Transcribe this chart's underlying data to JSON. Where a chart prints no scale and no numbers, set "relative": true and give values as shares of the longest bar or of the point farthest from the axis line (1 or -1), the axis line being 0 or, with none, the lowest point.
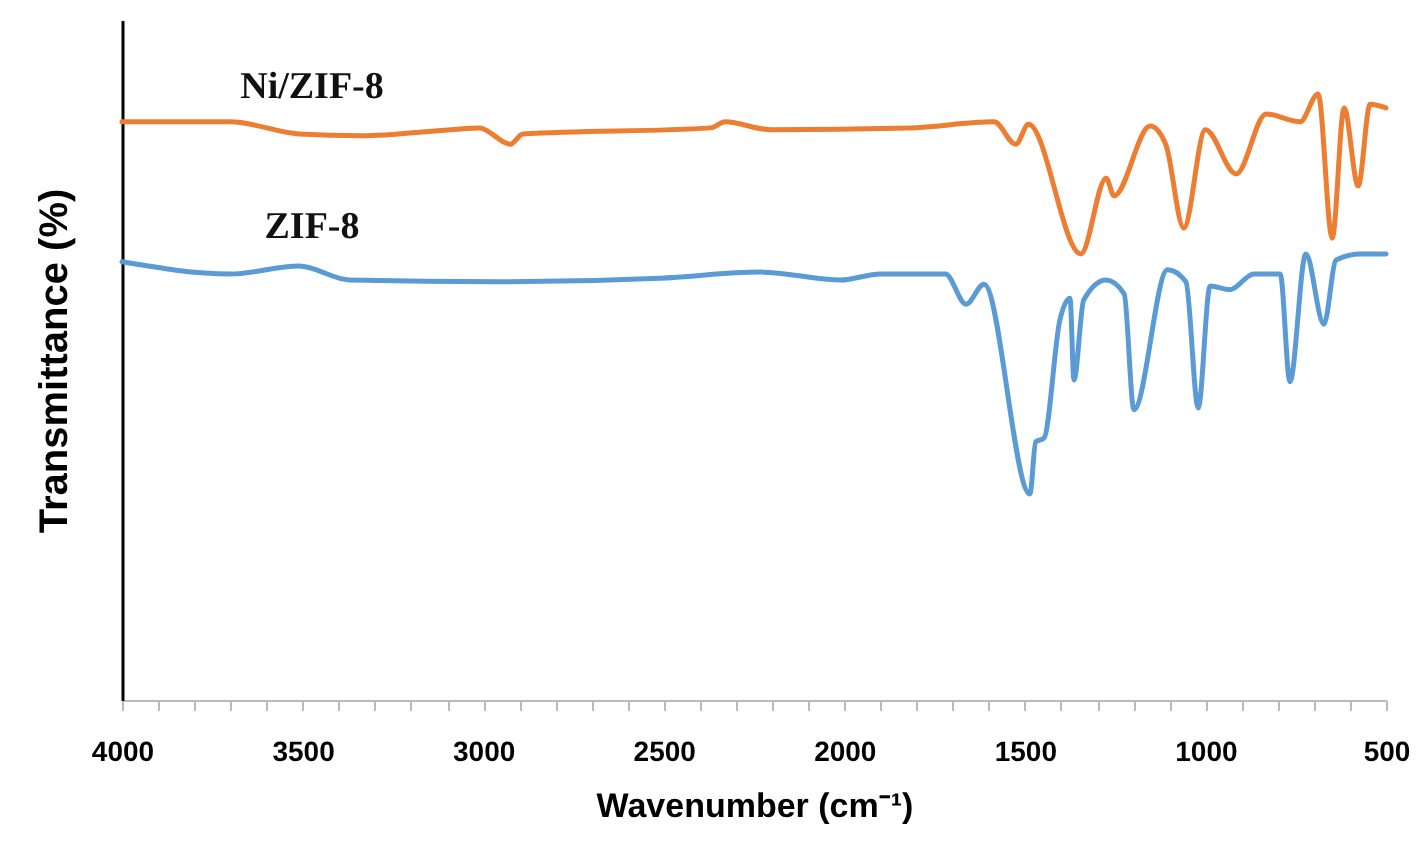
{
  "chart_data": {
    "type": "line",
    "relative": true,
    "xlabel": "Wavenumber (cm⁻¹)",
    "ylabel": "Transmittance (%)",
    "xlim": [
      4000,
      500
    ],
    "xticks": [
      4000,
      {
        "value": 3900,
        "label": null
      },
      {
        "value": 3800,
        "label": null
      },
      {
        "value": 3700,
        "label": null
      },
      {
        "value": 3600,
        "label": null
      },
      3500,
      {
        "value": 3400,
        "label": null
      },
      {
        "value": 3300,
        "label": null
      },
      {
        "value": 3200,
        "label": null
      },
      {
        "value": 3100,
        "label": null
      },
      3000,
      {
        "value": 2900,
        "label": null
      },
      {
        "value": 2800,
        "label": null
      },
      {
        "value": 2700,
        "label": null
      },
      {
        "value": 2600,
        "label": null
      },
      2500,
      {
        "value": 2400,
        "label": null
      },
      {
        "value": 2300,
        "label": null
      },
      {
        "value": 2200,
        "label": null
      },
      {
        "value": 2100,
        "label": null
      },
      2000,
      {
        "value": 1900,
        "label": null
      },
      {
        "value": 1800,
        "label": null
      },
      {
        "value": 1700,
        "label": null
      },
      {
        "value": 1600,
        "label": null
      },
      1500,
      {
        "value": 1400,
        "label": null
      },
      {
        "value": 1300,
        "label": null
      },
      {
        "value": 1200,
        "label": null
      },
      {
        "value": 1100,
        "label": null
      },
      1000,
      {
        "value": 900,
        "label": null
      },
      {
        "value": 800,
        "label": null
      },
      {
        "value": 700,
        "label": null
      },
      {
        "value": 600,
        "label": null
      },
      500
    ],
    "grid": false,
    "series": [
      {
        "name": "Ni/ZIF-8",
        "color": "#ed7d31",
        "x": [
          4000,
          3700,
          3510,
          3340,
          3090,
          3010,
          2925,
          2890,
          2370,
          2330,
          2205,
          1820,
          1585,
          1525,
          1490,
          1345,
          1275,
          1253,
          1153,
          1110,
          1060,
          1000,
          915,
          832,
          738,
          688,
          649,
          616,
          577,
          544,
          500
        ],
        "values": [
          0.954,
          0.954,
          0.934,
          0.931,
          0.941,
          0.944,
          0.917,
          0.934,
          0.944,
          0.954,
          0.941,
          0.944,
          0.954,
          0.917,
          0.95,
          0.736,
          0.861,
          0.832,
          0.947,
          0.917,
          0.779,
          0.941,
          0.868,
          0.967,
          0.954,
          1.0,
          0.762,
          0.977,
          0.848,
          0.983,
          0.977
        ]
      },
      {
        "name": "ZIF-8",
        "color": "#5b9bd5",
        "x": [
          4000,
          3700,
          3510,
          3370,
          2950,
          2510,
          2230,
          2010,
          1900,
          1720,
          1663,
          1613,
          1486,
          1470,
          1447,
          1403,
          1375,
          1364,
          1337,
          1275,
          1225,
          1198,
          1105,
          1054,
          1020,
          987,
          932,
          866,
          793,
          766,
          722,
          672,
          638,
          572,
          500
        ],
        "values": [
          0.723,
          0.703,
          0.716,
          0.693,
          0.69,
          0.696,
          0.706,
          0.693,
          0.703,
          0.703,
          0.653,
          0.686,
          0.34,
          0.426,
          0.432,
          0.627,
          0.663,
          0.528,
          0.66,
          0.693,
          0.67,
          0.479,
          0.71,
          0.69,
          0.482,
          0.683,
          0.677,
          0.703,
          0.703,
          0.525,
          0.736,
          0.62,
          0.726,
          0.736,
          0.736
        ]
      }
    ]
  }
}
